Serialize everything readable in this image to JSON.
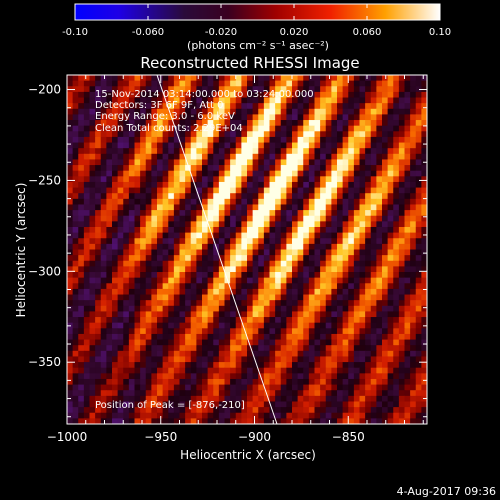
{
  "title": "Reconstructed RHESSI Image",
  "colorbar": {
    "ticks": [
      "-0.10",
      "-0.060",
      "-0.020",
      "0.020",
      "0.060",
      "0.10"
    ],
    "min": -0.1,
    "max": 0.1,
    "unit_label": "(photons cm⁻² s⁻¹ asec⁻²)"
  },
  "annotations": {
    "time": "15-Nov-2014 03:14:00.000 to 03:24:00.000",
    "detectors": "Detectors: 3F 6F 9F, Att 0",
    "energy": "Energy Range: 3.0 - 6.0 keV",
    "clean": "Clean    Total counts: 2.29E+04",
    "peak": "Position of Peak = [-876,-210]"
  },
  "footer_date": "4-Aug-2017 09:36",
  "chart_data": {
    "type": "heatmap",
    "title": "Reconstructed RHESSI Image",
    "xlabel": "Heliocentric X (arcsec)",
    "ylabel": "Heliocentric Y (arcsec)",
    "xlim": [
      -1000,
      -808
    ],
    "ylim": [
      -384,
      -192
    ],
    "xticks": [
      -1000,
      -950,
      -900,
      -850
    ],
    "xtick_labels": [
      "−1000",
      "−950",
      "−900",
      "−850"
    ],
    "yticks": [
      -200,
      -250,
      -300,
      -350
    ],
    "ytick_labels": [
      "−200",
      "−250",
      "−300",
      "−350"
    ],
    "peak": [
      -876,
      -210
    ],
    "limb_line": [
      [
        -952,
        -192
      ],
      [
        -888,
        -384
      ]
    ],
    "colormap": "hot (black-purple-red-orange-yellow-white)",
    "value_range": [
      -0.1,
      0.1
    ]
  }
}
